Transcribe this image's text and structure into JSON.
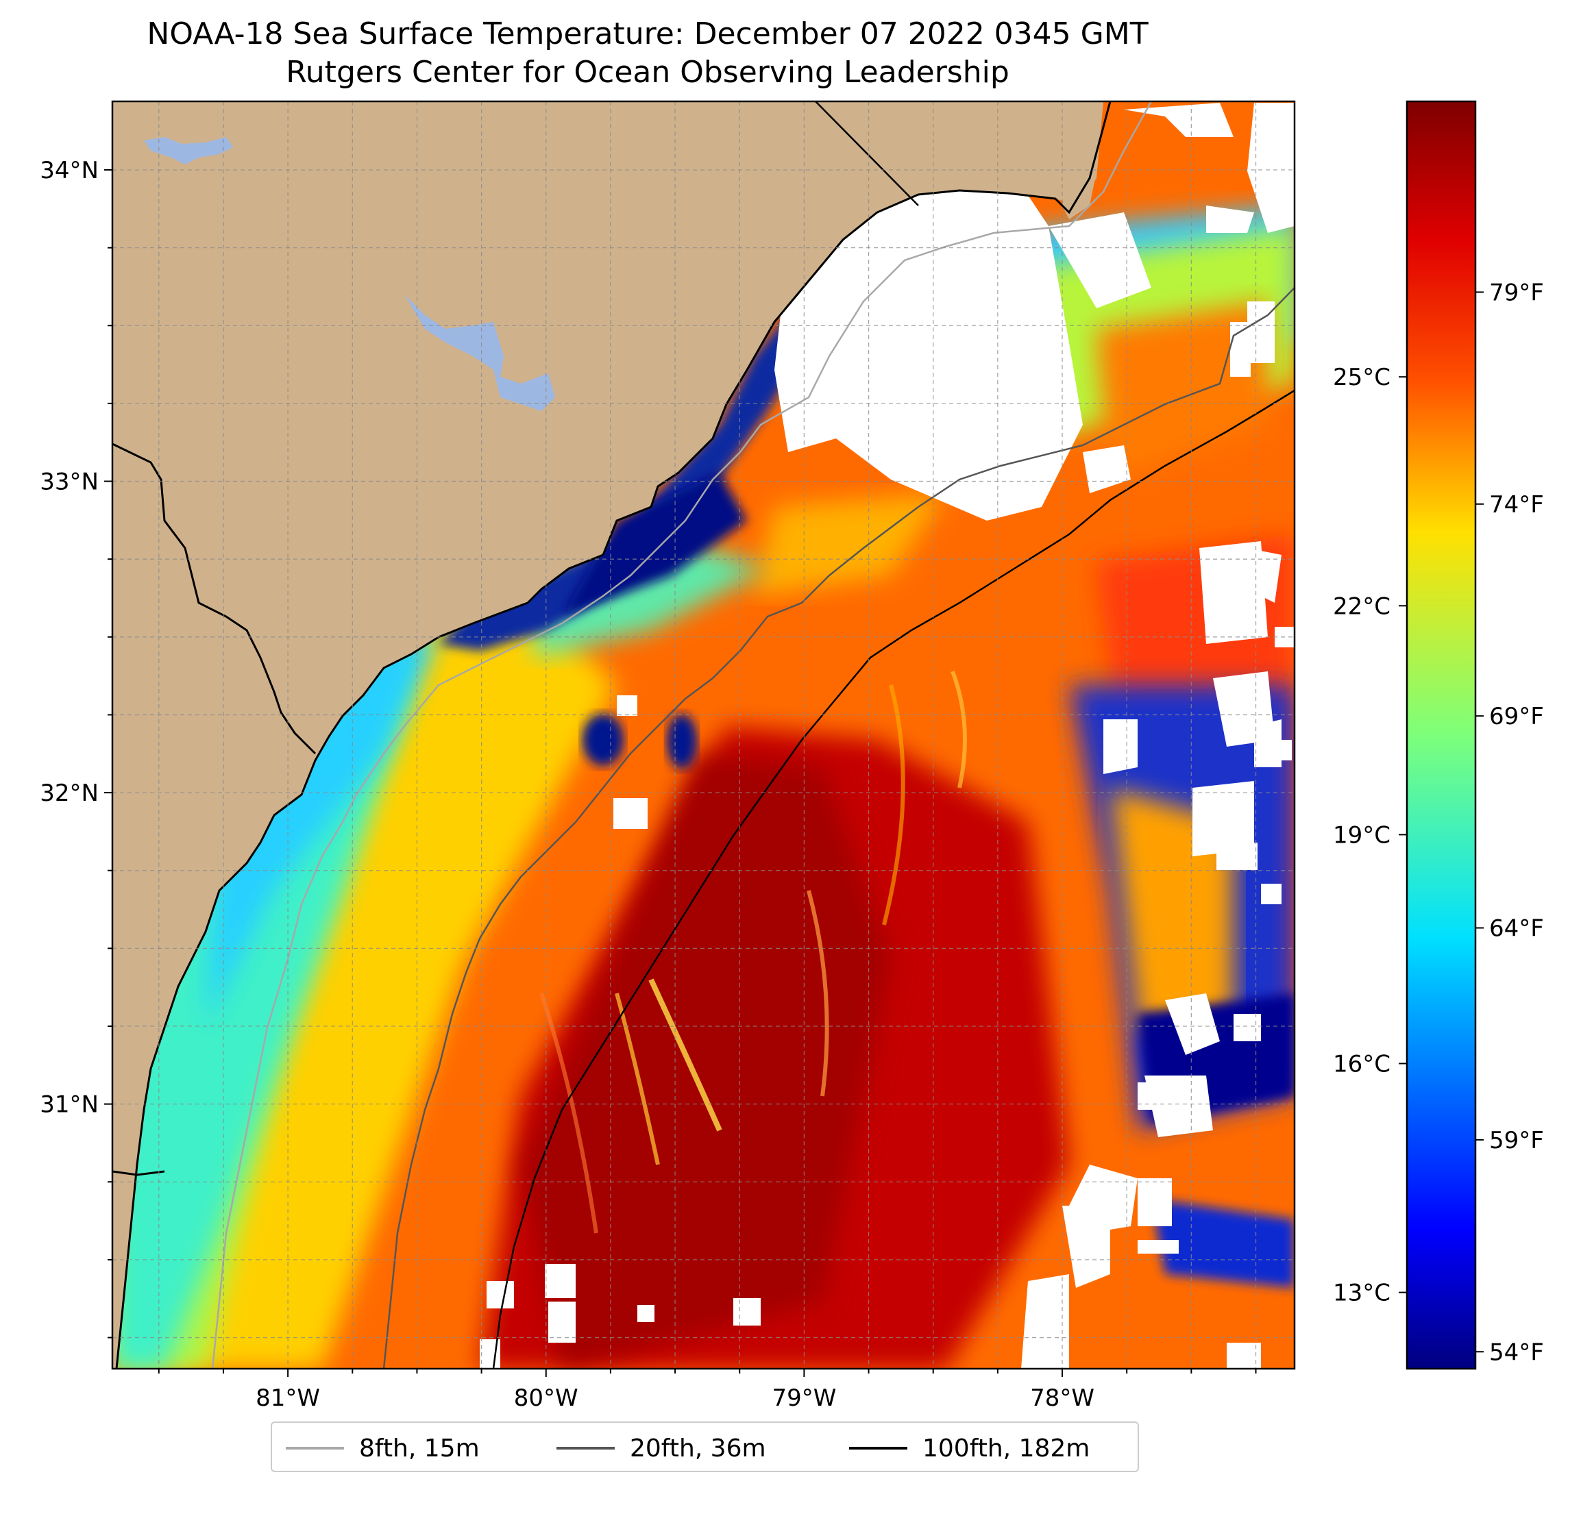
{
  "title": {
    "line1": "NOAA-18 Sea Surface Temperature: December 07 2022 0345 GMT",
    "line2": "Rutgers Center for Ocean Observing Leadership"
  },
  "map": {
    "lon_range": [
      -81.68,
      -77.1
    ],
    "lat_range": [
      30.15,
      34.22
    ],
    "lat_ticks": [
      {
        "value": 31,
        "label": "31°N"
      },
      {
        "value": 32,
        "label": "32°N"
      },
      {
        "value": 33,
        "label": "33°N"
      },
      {
        "value": 34,
        "label": "34°N"
      }
    ],
    "lon_ticks": [
      {
        "value": -81,
        "label": "81°W"
      },
      {
        "value": -80,
        "label": "80°W"
      },
      {
        "value": -79,
        "label": "79°W"
      },
      {
        "value": -78,
        "label": "78°W"
      }
    ],
    "gridlines": "dashed, every 0.25 degrees",
    "colors": {
      "land": "#cfb28c",
      "lake": "#9db7e3",
      "coast": "#000000",
      "isobath_8fth": "#a8a8a8",
      "isobath_20fth": "#555555",
      "isobath_100fth": "#000000",
      "no_data": "#ffffff"
    }
  },
  "colorbar": {
    "colormap": "jet",
    "range_f": [
      53.6,
      83.5
    ],
    "celsius_ticks": [
      {
        "value_f": 55.4,
        "label": "13°C"
      },
      {
        "value_f": 60.8,
        "label": "16°C"
      },
      {
        "value_f": 66.2,
        "label": "19°C"
      },
      {
        "value_f": 71.6,
        "label": "22°C"
      },
      {
        "value_f": 77.0,
        "label": "25°C"
      }
    ],
    "fahrenheit_ticks": [
      {
        "value_f": 54,
        "label": "54°F"
      },
      {
        "value_f": 59,
        "label": "59°F"
      },
      {
        "value_f": 64,
        "label": "64°F"
      },
      {
        "value_f": 69,
        "label": "69°F"
      },
      {
        "value_f": 74,
        "label": "74°F"
      },
      {
        "value_f": 79,
        "label": "79°F"
      }
    ]
  },
  "legend": {
    "items": [
      {
        "label": "8fth, 15m",
        "color": "#a8a8a8"
      },
      {
        "label": "20fth, 36m",
        "color": "#555555"
      },
      {
        "label": "100fth, 182m",
        "color": "#000000"
      }
    ]
  }
}
